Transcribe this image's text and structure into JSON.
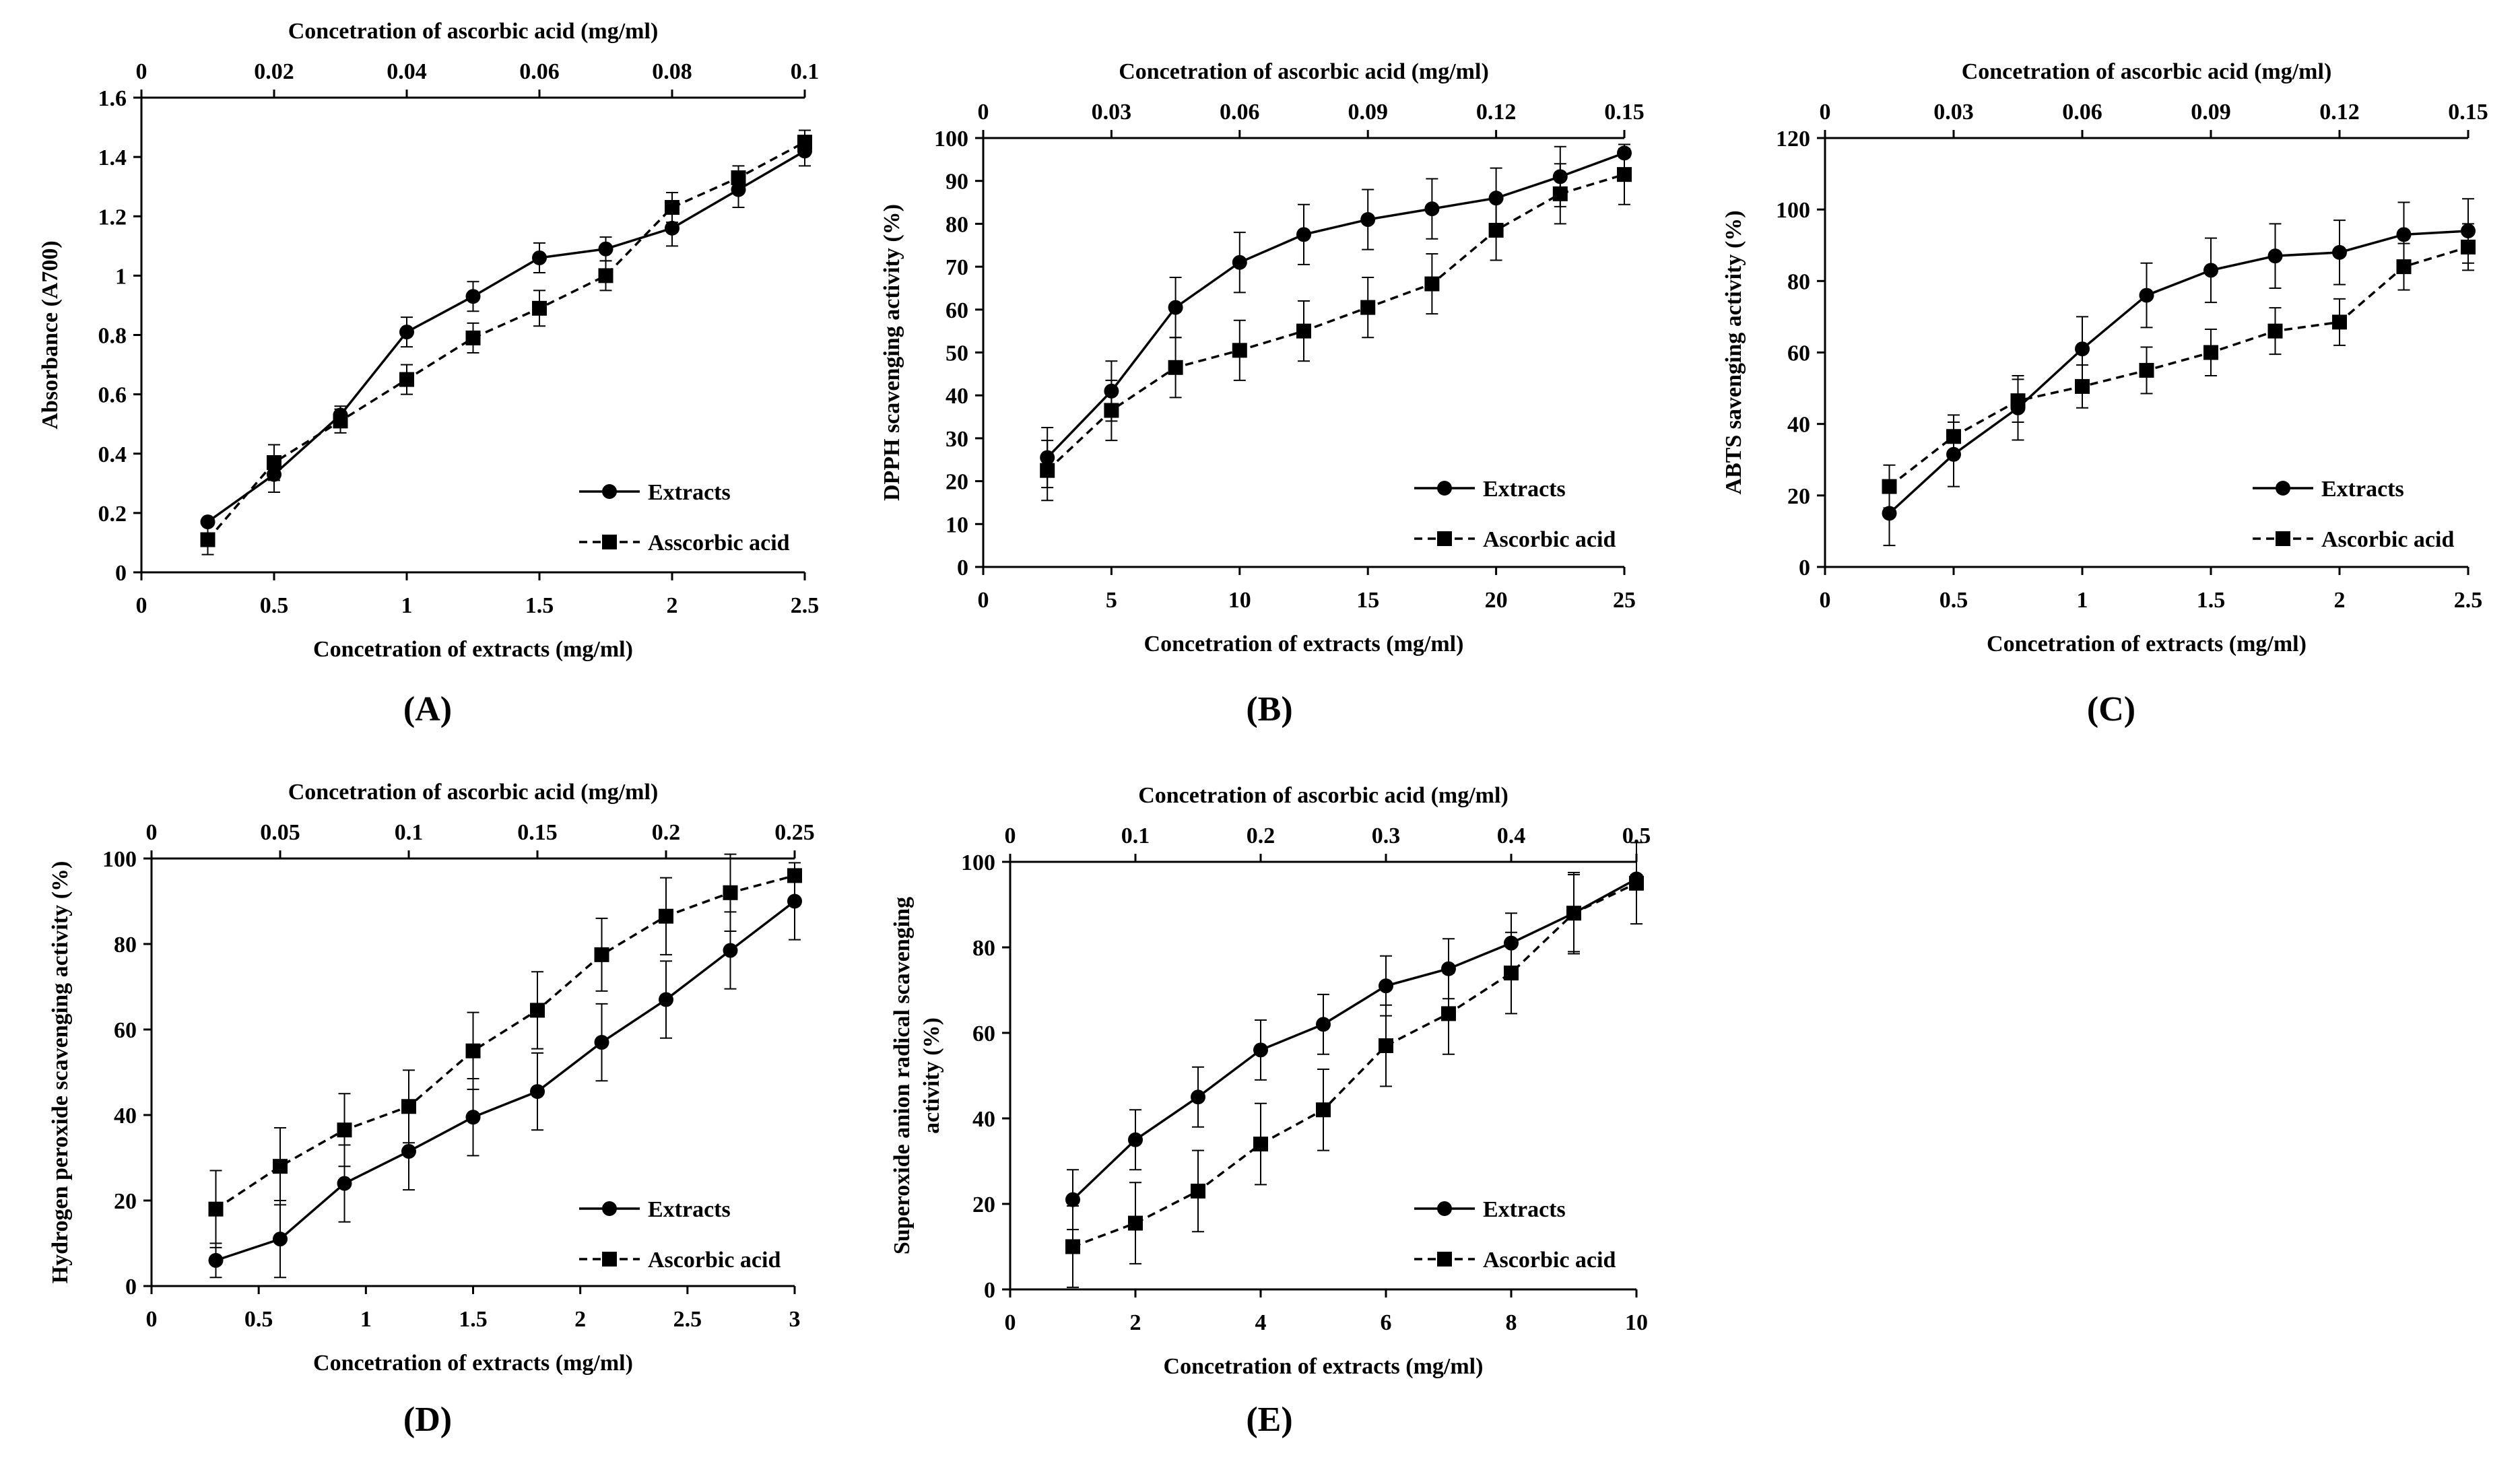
{
  "figure": {
    "legend_extracts": "Extracts",
    "legend_ascorbic": "Ascorbic acid"
  },
  "chart_data": [
    {
      "type": "line",
      "panel_label": "(A)",
      "xlabel": "Concetration of extracts (mg/ml)",
      "x2label": "Concetration of ascorbic acid (mg/ml)",
      "ylabel": "Absorbance (A700)",
      "xlim": [
        0,
        2.5
      ],
      "xticks": [
        0,
        0.5,
        1,
        1.5,
        2,
        2.5
      ],
      "xticklabels": [
        "0",
        "0.5",
        "1",
        "1.5",
        "2",
        "2.5"
      ],
      "x2lim": [
        0,
        0.1
      ],
      "x2ticks": [
        0,
        0.02,
        0.04,
        0.06,
        0.08,
        0.1
      ],
      "x2ticklabels": [
        "0",
        "0.02",
        "0.04",
        "0.06",
        "0.08",
        "0.1"
      ],
      "ylim": [
        0,
        1.6
      ],
      "yticks": [
        0,
        0.2,
        0.4,
        0.6,
        0.8,
        1,
        1.2,
        1.4,
        1.6
      ],
      "yticklabels": [
        "0",
        "0.2",
        "0.4",
        "0.6",
        "0.8",
        "1",
        "1.2",
        "1.4",
        "1.6"
      ],
      "legend": [
        "Extracts",
        "Asscorbic acid"
      ],
      "series": [
        {
          "name": "Extracts",
          "marker": "circle",
          "dash": "solid",
          "x": [
            0.25,
            0.5,
            0.75,
            1,
            1.25,
            1.5,
            1.75,
            2,
            2.25,
            2.5
          ],
          "values": [
            0.17,
            0.33,
            0.53,
            0.81,
            0.93,
            1.06,
            1.09,
            1.16,
            1.29,
            1.42
          ],
          "errors": [
            0.01,
            0.06,
            0.03,
            0.05,
            0.05,
            0.05,
            0.04,
            0.06,
            0.06,
            0.05
          ]
        },
        {
          "name": "Asscorbic acid",
          "marker": "square",
          "dash": "dashed",
          "x": [
            0.25,
            0.5,
            0.75,
            1,
            1.25,
            1.5,
            1.75,
            2,
            2.25,
            2.5
          ],
          "values": [
            0.11,
            0.37,
            0.51,
            0.65,
            0.79,
            0.89,
            1.0,
            1.23,
            1.33,
            1.45
          ],
          "errors": [
            0.05,
            0.06,
            0.04,
            0.05,
            0.05,
            0.06,
            0.05,
            0.05,
            0.04,
            0.04
          ]
        }
      ]
    },
    {
      "type": "line",
      "panel_label": "(B)",
      "xlabel": "Concetration of extracts (mg/ml)",
      "x2label": "Concetration of ascorbic acid (mg/ml)",
      "ylabel": "DPPH scavenging activity (%)",
      "xlim": [
        0,
        25
      ],
      "xticks": [
        0,
        5,
        10,
        15,
        20,
        25
      ],
      "xticklabels": [
        "0",
        "5",
        "10",
        "15",
        "20",
        "25"
      ],
      "x2lim": [
        0,
        0.15
      ],
      "x2ticks": [
        0,
        0.03,
        0.06,
        0.09,
        0.12,
        0.15
      ],
      "x2ticklabels": [
        "0",
        "0.03",
        "0.06",
        "0.09",
        "0.12",
        "0.15"
      ],
      "ylim": [
        0,
        100
      ],
      "yticks": [
        0,
        10,
        20,
        30,
        40,
        50,
        60,
        70,
        80,
        90,
        100
      ],
      "yticklabels": [
        "0",
        "10",
        "20",
        "30",
        "40",
        "50",
        "60",
        "70",
        "80",
        "90",
        "100"
      ],
      "legend": [
        "Extracts",
        "Ascorbic acid"
      ],
      "series": [
        {
          "name": "Extracts",
          "marker": "circle",
          "dash": "solid",
          "x": [
            2.5,
            5,
            7.5,
            10,
            12.5,
            15,
            17.5,
            20,
            22.5,
            25
          ],
          "values": [
            25.5,
            41,
            60.5,
            71,
            77.5,
            81,
            83.5,
            86,
            91,
            96.5
          ],
          "errors": [
            7,
            7,
            7,
            7,
            7,
            7,
            7,
            7,
            7,
            1
          ]
        },
        {
          "name": "Ascorbic acid",
          "marker": "square",
          "dash": "dashed",
          "x": [
            2.5,
            5,
            7.5,
            10,
            12.5,
            15,
            17.5,
            20,
            22.5,
            25
          ],
          "values": [
            22.5,
            36.5,
            46.5,
            50.5,
            55,
            60.5,
            66,
            78.5,
            87,
            91.5
          ],
          "errors": [
            7,
            7,
            7,
            7,
            7,
            7,
            7,
            7,
            7,
            7
          ]
        }
      ]
    },
    {
      "type": "line",
      "panel_label": "(C)",
      "xlabel": "Concetration of extracts (mg/ml)",
      "x2label": "Concetration of ascorbic acid (mg/ml)",
      "ylabel": "ABTS savenging activity (%)",
      "xlim": [
        0,
        2.5
      ],
      "xticks": [
        0,
        0.5,
        1,
        1.5,
        2,
        2.5
      ],
      "xticklabels": [
        "0",
        "0.5",
        "1",
        "1.5",
        "2",
        "2.5"
      ],
      "x2lim": [
        0,
        0.15
      ],
      "x2ticks": [
        0,
        0.03,
        0.06,
        0.09,
        0.12,
        0.15
      ],
      "x2ticklabels": [
        "0",
        "0.03",
        "0.06",
        "0.09",
        "0.12",
        "0.15"
      ],
      "ylim": [
        0,
        120
      ],
      "yticks": [
        0,
        20,
        40,
        60,
        80,
        100,
        120
      ],
      "yticklabels": [
        "0",
        "20",
        "40",
        "60",
        "80",
        "100",
        "120"
      ],
      "legend": [
        "Extracts",
        "Ascorbic acid"
      ],
      "series": [
        {
          "name": "Extracts",
          "marker": "circle",
          "dash": "solid",
          "x": [
            0.25,
            0.5,
            0.75,
            1,
            1.25,
            1.5,
            1.75,
            2,
            2.25,
            2.5
          ],
          "values": [
            15,
            31.5,
            44.5,
            61,
            76,
            83,
            87,
            88,
            93,
            94
          ],
          "errors": [
            9,
            9,
            9,
            9,
            9,
            9,
            9,
            9,
            9,
            9
          ]
        },
        {
          "name": "Ascorbic acid",
          "marker": "square",
          "dash": "dashed",
          "x": [
            0.25,
            0.5,
            0.75,
            1,
            1.25,
            1.5,
            1.75,
            2,
            2.25,
            2.5
          ],
          "values": [
            22.5,
            36.5,
            46.5,
            50.5,
            55,
            60,
            66,
            68.5,
            84,
            89.5
          ],
          "errors": [
            6,
            6,
            6,
            6,
            6.5,
            6.5,
            6.5,
            6.5,
            6.5,
            6.5
          ]
        }
      ]
    },
    {
      "type": "line",
      "panel_label": "(D)",
      "xlabel": "Concetration of extracts (mg/ml)",
      "x2label": "Concetration of ascorbic acid (mg/ml)",
      "ylabel": "Hydrogen peroxide scavenging activity (%)",
      "xlim": [
        0,
        3
      ],
      "xticks": [
        0,
        0.5,
        1,
        1.5,
        2,
        2.5,
        3
      ],
      "xticklabels": [
        "0",
        "0.5",
        "1",
        "1.5",
        "2",
        "2.5",
        "3"
      ],
      "x2lim": [
        0,
        0.25
      ],
      "x2ticks": [
        0,
        0.05,
        0.1,
        0.15,
        0.2,
        0.25
      ],
      "x2ticklabels": [
        "0",
        "0.05",
        "0.1",
        "0.15",
        "0.2",
        "0.25"
      ],
      "ylim": [
        0,
        100
      ],
      "yticks": [
        0,
        20,
        40,
        60,
        80,
        100
      ],
      "yticklabels": [
        "0",
        "20",
        "40",
        "60",
        "80",
        "100"
      ],
      "legend": [
        "Extracts",
        "Ascorbic acid"
      ],
      "series": [
        {
          "name": "Extracts",
          "marker": "circle",
          "dash": "solid",
          "x": [
            0.3,
            0.6,
            0.9,
            1.2,
            1.5,
            1.8,
            2.1,
            2.4,
            2.7,
            3.0
          ],
          "values": [
            6,
            11,
            24,
            31.5,
            39.5,
            45.5,
            57,
            67,
            78.5,
            90
          ],
          "errors": [
            4,
            9,
            9,
            9,
            9,
            9,
            9,
            9,
            9,
            9
          ]
        },
        {
          "name": "Ascorbic acid",
          "marker": "square",
          "dash": "dashed",
          "x": [
            0.3,
            0.6,
            0.9,
            1.2,
            1.5,
            1.8,
            2.1,
            2.4,
            2.7,
            3.0
          ],
          "values": [
            18,
            28,
            36.5,
            42,
            55,
            64.5,
            77.5,
            86.5,
            92,
            96
          ],
          "errors": [
            9,
            9,
            8.5,
            8.5,
            9,
            9,
            8.5,
            9,
            9,
            1
          ]
        }
      ]
    },
    {
      "type": "line",
      "panel_label": "(E)",
      "xlabel": "Concetration of extracts (mg/ml)",
      "x2label": "Concetration of ascorbic acid (mg/ml)",
      "ylabel": "Superoxide anion radical scavenging activity (%)",
      "ylabel_lines": [
        "Superoxide anion radical scavenging",
        "activity (%)"
      ],
      "xlim": [
        0,
        10
      ],
      "xticks": [
        0,
        2,
        4,
        6,
        8,
        10
      ],
      "xticklabels": [
        "0",
        "2",
        "4",
        "6",
        "8",
        "10"
      ],
      "x2lim": [
        0,
        0.5
      ],
      "x2ticks": [
        0,
        0.1,
        0.2,
        0.3,
        0.4,
        0.5
      ],
      "x2ticklabels": [
        "0",
        "0.1",
        "0.2",
        "0.3",
        "0.4",
        "0.5"
      ],
      "ylim": [
        0,
        100
      ],
      "yticks": [
        0,
        20,
        40,
        60,
        80,
        100
      ],
      "yticklabels": [
        "0",
        "20",
        "40",
        "60",
        "80",
        "100"
      ],
      "legend": [
        "Extracts",
        "Ascorbic acid"
      ],
      "series": [
        {
          "name": "Extracts",
          "marker": "circle",
          "dash": "solid",
          "x": [
            1,
            2,
            3,
            4,
            5,
            6,
            7,
            8,
            9,
            10
          ],
          "values": [
            21,
            35,
            45,
            56,
            62,
            71,
            75,
            81,
            88,
            96
          ],
          "errors": [
            7,
            7,
            7,
            7,
            7,
            7,
            7,
            7,
            9,
            1
          ]
        },
        {
          "name": "Ascorbic acid",
          "marker": "square",
          "dash": "dashed",
          "x": [
            1,
            2,
            3,
            4,
            5,
            6,
            7,
            8,
            9,
            10
          ],
          "values": [
            10,
            15.5,
            23,
            34,
            42,
            57,
            64.5,
            74,
            88,
            95
          ],
          "errors": [
            9.5,
            9.5,
            9.5,
            9.5,
            9.5,
            9.5,
            9.5,
            9.5,
            9.5,
            9.5
          ]
        }
      ]
    }
  ]
}
